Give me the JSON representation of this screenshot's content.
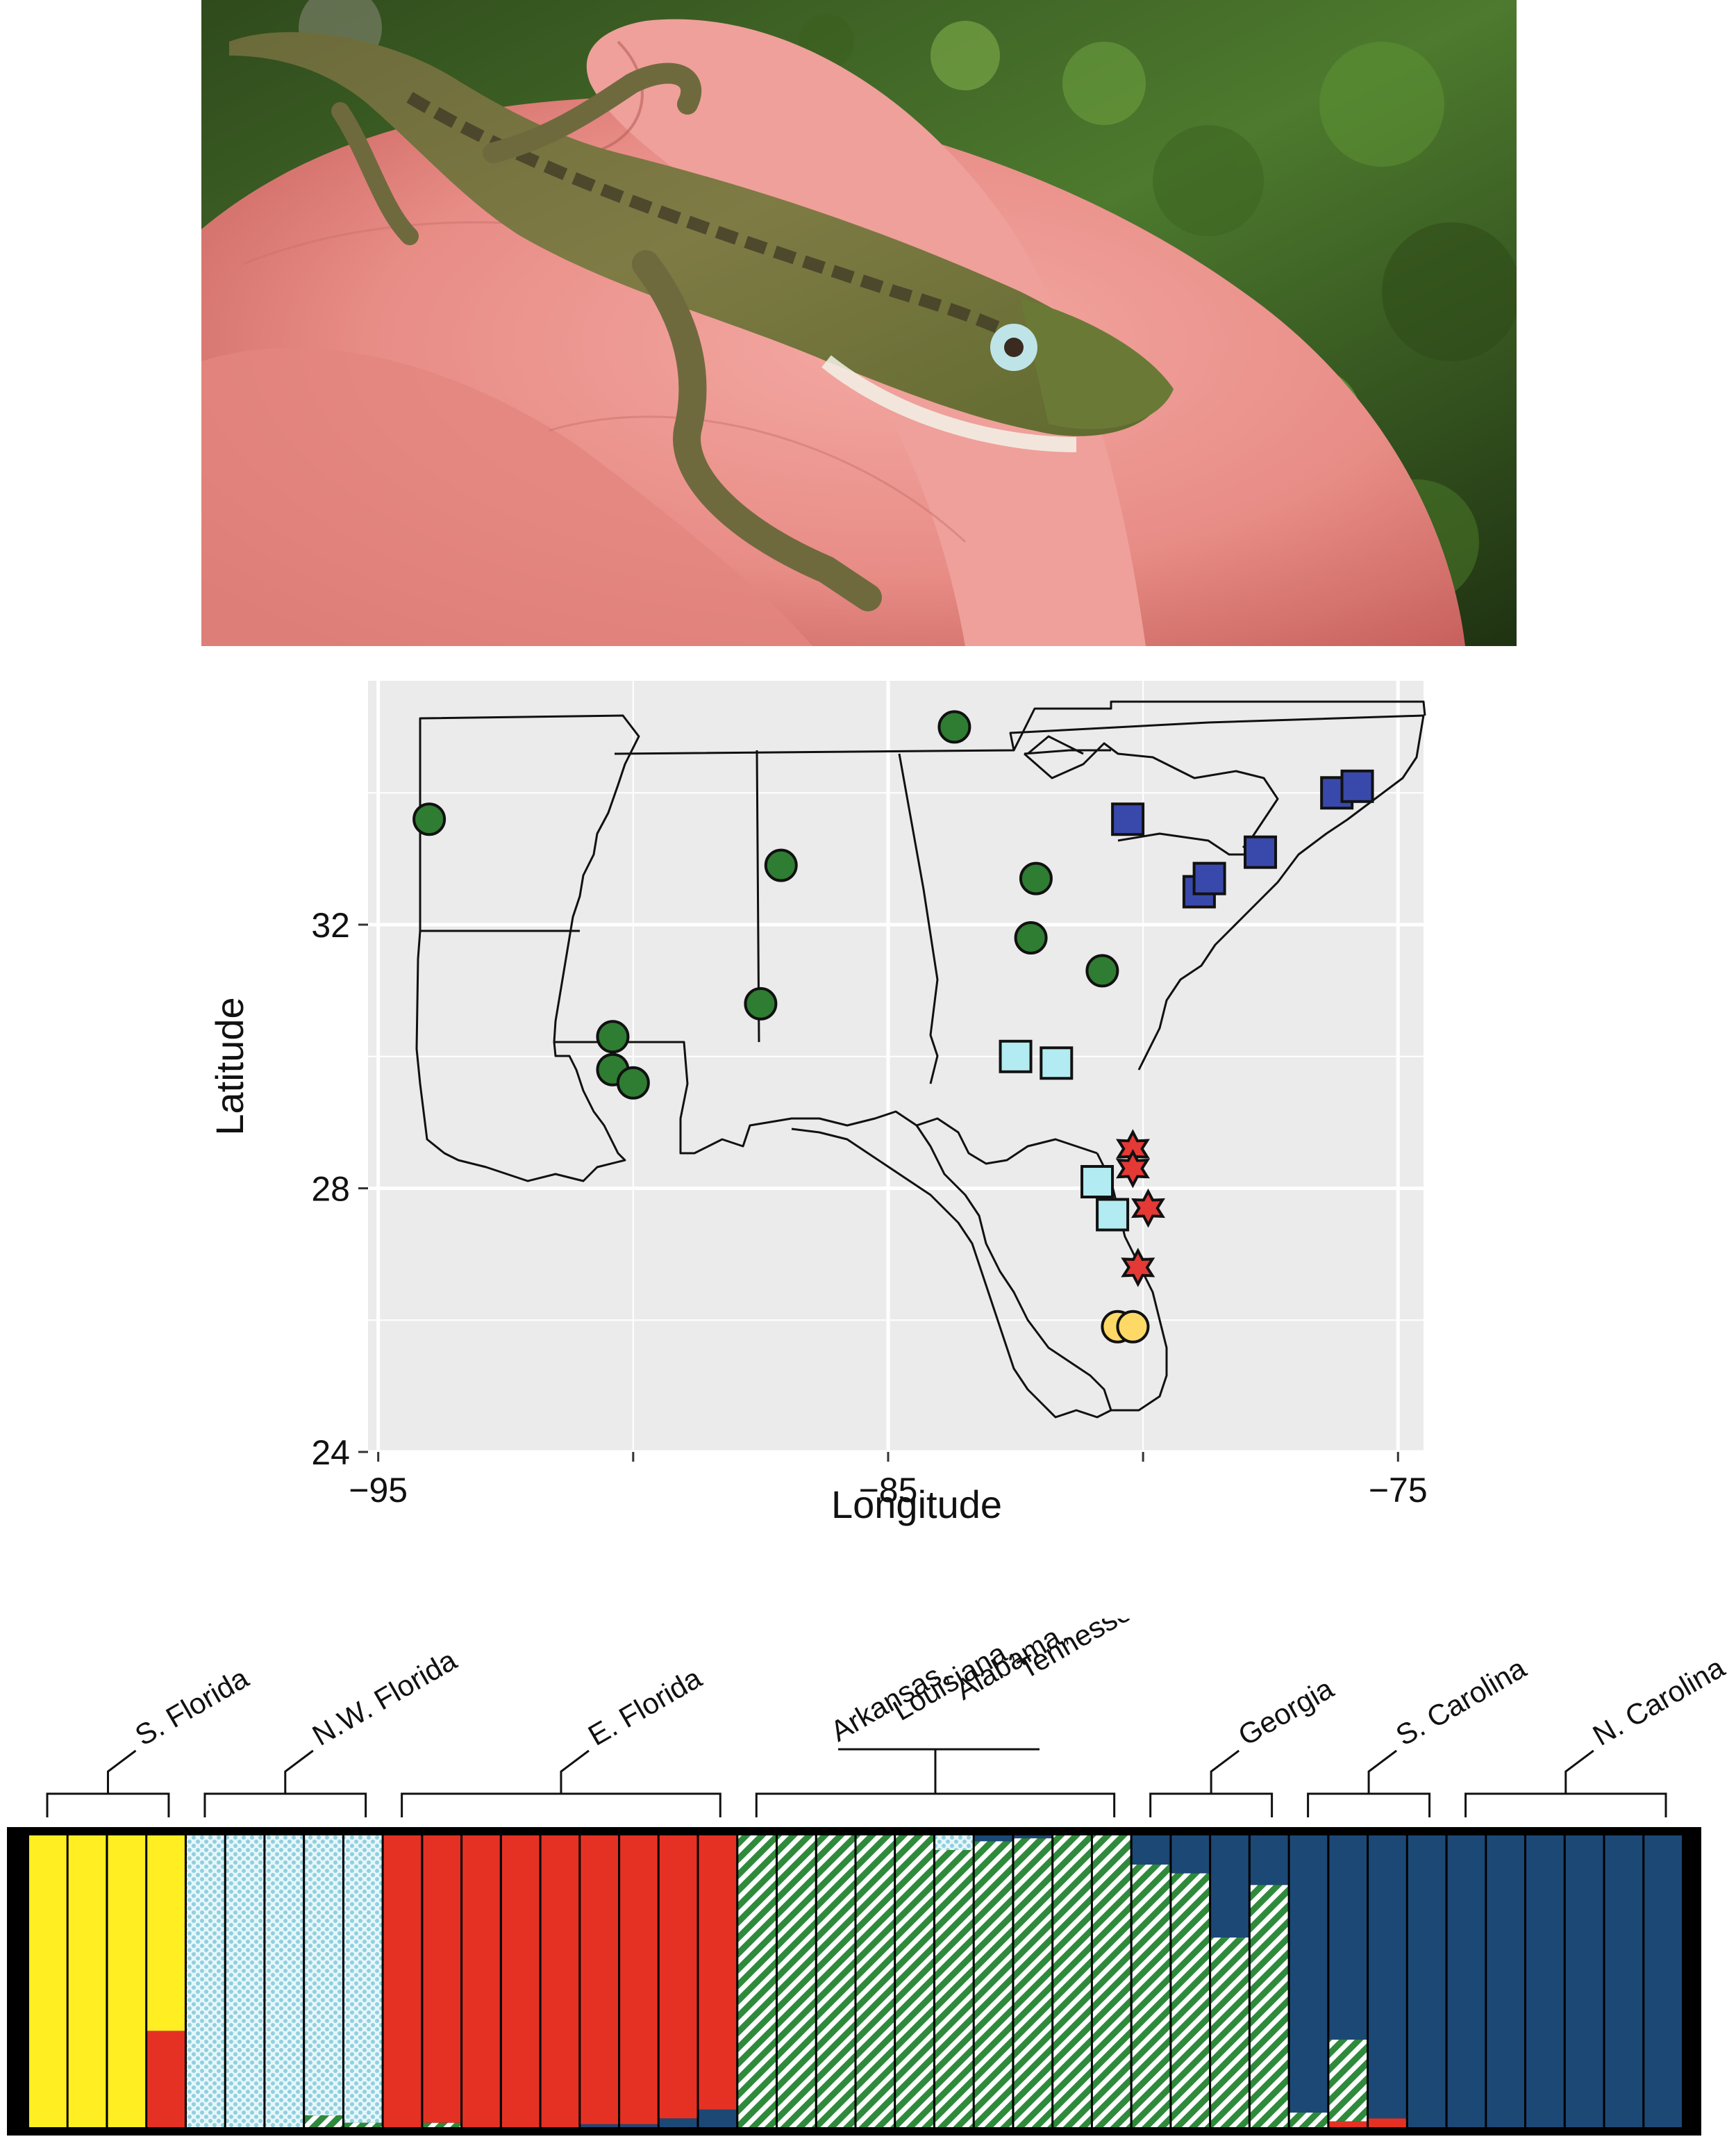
{
  "photo": {
    "subject": "green anole lizard (Anolis carolinensis) perched on fingers"
  },
  "map": {
    "xlabel": "Longitude",
    "ylabel": "Latitude",
    "x_ticks": [
      "−95",
      "−85",
      "−75"
    ],
    "y_ticks": [
      "24",
      "28",
      "32"
    ],
    "colors": {
      "panel": "#ebebeb",
      "grid": "#ffffff",
      "green": "#2e7d32",
      "dark_blue": "#3949ab",
      "light_blue": "#b2ebf2",
      "red": "#e53935",
      "yellow": "#ffd966"
    }
  },
  "chart_data": {
    "type": "scatter",
    "xlabel": "Longitude",
    "ylabel": "Latitude",
    "xlim": [
      -95.2,
      -74.5
    ],
    "ylim": [
      24,
      35.7
    ],
    "grid": true,
    "series": [
      {
        "marker": "circle",
        "color": "#2e7d32",
        "points": [
          [
            -94.0,
            33.6
          ],
          [
            -90.4,
            30.3
          ],
          [
            -90.4,
            29.8
          ],
          [
            -90.0,
            29.6
          ],
          [
            -87.5,
            30.8
          ],
          [
            -87.1,
            32.9
          ],
          [
            -83.7,
            35.0
          ],
          [
            -82.1,
            32.7
          ],
          [
            -82.2,
            31.8
          ],
          [
            -80.8,
            31.3
          ]
        ]
      },
      {
        "marker": "square",
        "color": "#3949ab",
        "points": [
          [
            -80.3,
            33.6
          ],
          [
            -78.9,
            32.5
          ],
          [
            -78.7,
            32.7
          ],
          [
            -77.7,
            33.1
          ],
          [
            -76.2,
            34.0
          ],
          [
            -75.8,
            34.1
          ]
        ]
      },
      {
        "marker": "square",
        "color": "#b2ebf2",
        "points": [
          [
            -82.5,
            30.0
          ],
          [
            -81.7,
            29.9
          ],
          [
            -80.9,
            28.1
          ],
          [
            -80.6,
            27.6
          ]
        ]
      },
      {
        "marker": "star",
        "color": "#e53935",
        "points": [
          [
            -80.2,
            28.6
          ],
          [
            -80.2,
            28.3
          ],
          [
            -79.9,
            27.7
          ],
          [
            -80.1,
            26.8
          ]
        ]
      },
      {
        "marker": "circle",
        "color": "#ffd966",
        "points": [
          [
            -80.5,
            25.9
          ],
          [
            -80.2,
            25.9
          ]
        ]
      }
    ]
  },
  "structure": {
    "groups": [
      {
        "label": "S. Florida",
        "n": 4
      },
      {
        "label": "N.W. Florida",
        "n": 5
      },
      {
        "label": "E. Florida",
        "n": 9
      },
      {
        "label_lines": [
          "Arkansas,",
          "Louisiana,",
          "Alabama,",
          "Tennessee"
        ],
        "n": 10
      },
      {
        "label": "Georgia",
        "n": 4
      },
      {
        "label": "S. Carolina",
        "n": 4
      },
      {
        "label": "N. Carolina",
        "n": 6
      }
    ],
    "cluster_colors": {
      "yellow": "#ffee22",
      "light_blue": "#a8dde8",
      "red": "#e53124",
      "green": "#2f8a3c",
      "navy": "#1c4876"
    }
  }
}
